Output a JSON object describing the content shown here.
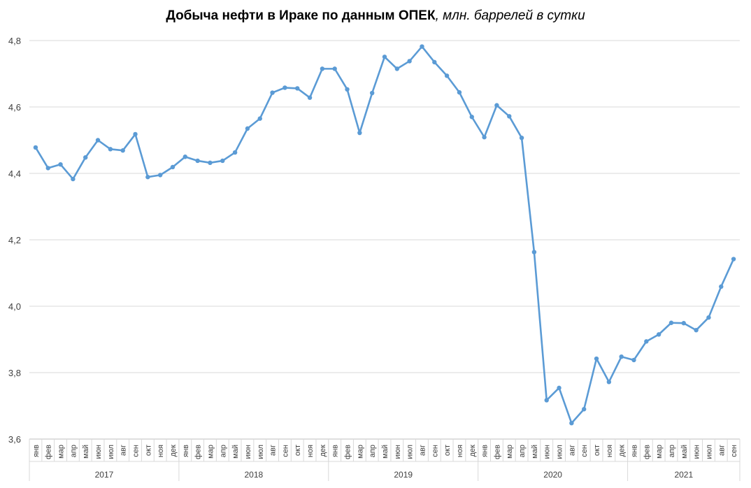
{
  "chart_data": {
    "type": "line",
    "title": "Добыча нефти в Ираке по данным ОПЕК",
    "subtitle": ", млн. баррелей в сутки",
    "ylim": [
      3.6,
      4.8
    ],
    "yticks": [
      "3,6",
      "3,8",
      "4,0",
      "4,2",
      "4,4",
      "4,6",
      "4,8"
    ],
    "ytick_values": [
      3.6,
      3.8,
      4.0,
      4.2,
      4.4,
      4.6,
      4.8
    ],
    "grid": true,
    "legend": "none",
    "line_color": "#5b9bd5",
    "years": [
      {
        "label": "2017",
        "months": 12
      },
      {
        "label": "2018",
        "months": 12
      },
      {
        "label": "2019",
        "months": 12
      },
      {
        "label": "2020",
        "months": 12
      },
      {
        "label": "2021",
        "months": 9
      }
    ],
    "categories": [
      "янв",
      "фев",
      "мар",
      "апр",
      "май",
      "июн",
      "июл",
      "авг",
      "сен",
      "окт",
      "ноя",
      "дек",
      "янв",
      "фев",
      "мар",
      "апр",
      "май",
      "июн",
      "июл",
      "авг",
      "сен",
      "окт",
      "ноя",
      "дек",
      "янв",
      "фев",
      "мар",
      "апр",
      "май",
      "июн",
      "июл",
      "авг",
      "сен",
      "окт",
      "ноя",
      "дек",
      "янв",
      "фев",
      "мар",
      "апр",
      "май",
      "июн",
      "июл",
      "авг",
      "сен",
      "окт",
      "ноя",
      "дек",
      "янв",
      "фев",
      "мар",
      "апр",
      "май",
      "июн",
      "июл",
      "авг",
      "сен"
    ],
    "series": [
      {
        "values": [
          4.478,
          4.416,
          4.427,
          4.383,
          4.448,
          4.5,
          4.473,
          4.469,
          4.518,
          4.389,
          4.395,
          4.419,
          4.45,
          4.438,
          4.432,
          4.438,
          4.463,
          4.535,
          4.565,
          4.643,
          4.658,
          4.656,
          4.628,
          4.715,
          4.715,
          4.653,
          4.522,
          4.642,
          4.751,
          4.715,
          4.738,
          4.782,
          4.735,
          4.694,
          4.644,
          4.57,
          4.509,
          4.605,
          4.572,
          4.507,
          4.163,
          3.717,
          3.754,
          3.648,
          3.69,
          3.842,
          3.772,
          3.848,
          3.838,
          3.894,
          3.915,
          3.95,
          3.949,
          3.928,
          3.966,
          4.059,
          4.142
        ]
      }
    ]
  }
}
